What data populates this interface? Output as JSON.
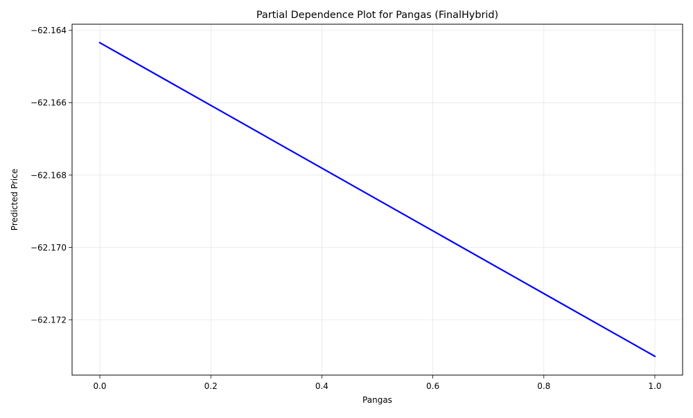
{
  "chart_data": {
    "type": "line",
    "title": "Partial Dependence Plot for Pangas (FinalHybrid)",
    "xlabel": "Pangas",
    "ylabel": "Predicted Price",
    "xlim": [
      -0.05,
      1.05
    ],
    "ylim": [
      -62.17353,
      -62.16383
    ],
    "x_ticks": [
      {
        "value": 0.0,
        "label": "0.0"
      },
      {
        "value": 0.2,
        "label": "0.2"
      },
      {
        "value": 0.4,
        "label": "0.4"
      },
      {
        "value": 0.6,
        "label": "0.6"
      },
      {
        "value": 0.8,
        "label": "0.8"
      },
      {
        "value": 1.0,
        "label": "1.0"
      }
    ],
    "y_ticks": [
      {
        "value": -62.164,
        "label": "−62.164"
      },
      {
        "value": -62.166,
        "label": "−62.166"
      },
      {
        "value": -62.168,
        "label": "−62.168"
      },
      {
        "value": -62.17,
        "label": "−62.170"
      },
      {
        "value": -62.172,
        "label": "−62.172"
      }
    ],
    "grid": true,
    "series": [
      {
        "color": "#0000ff",
        "x": [
          0.0,
          1.0
        ],
        "y": [
          -62.16434,
          -62.17301
        ]
      }
    ]
  }
}
